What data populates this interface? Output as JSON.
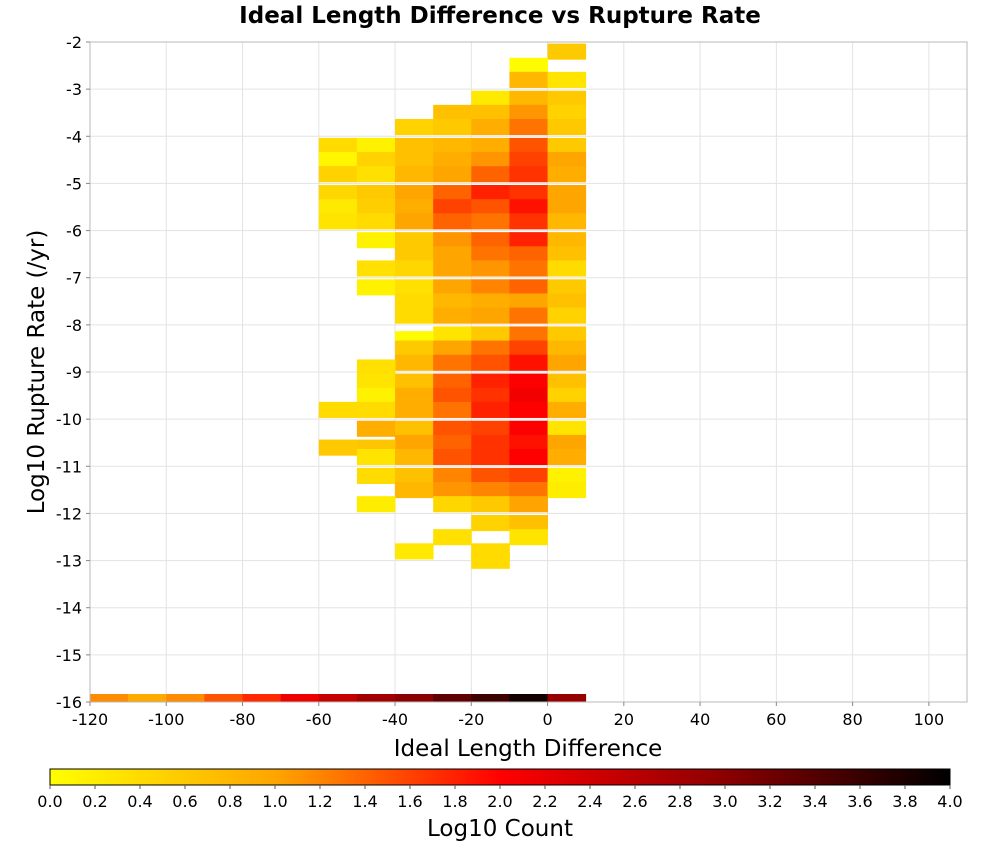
{
  "chart_data": {
    "type": "heatmap",
    "title": "Ideal Length Difference vs Rupture Rate",
    "xlabel": "Ideal Length Difference",
    "ylabel": "Log10 Rupture Rate (/yr)",
    "xlim": [
      -120,
      110
    ],
    "ylim": [
      -16,
      -2
    ],
    "x_ticks": [
      "-120",
      "-100",
      "-80",
      "-60",
      "-40",
      "-20",
      "0",
      "20",
      "40",
      "60",
      "80",
      "100"
    ],
    "y_ticks": [
      "-2",
      "-3",
      "-4",
      "-5",
      "-6",
      "-7",
      "-8",
      "-9",
      "-10",
      "-11",
      "-12",
      "-13",
      "-14",
      "-15",
      "-16"
    ],
    "x_bin_width": 10,
    "y_bin_height": 0.333,
    "grid": true,
    "colorbar": {
      "label": "Log10 Count",
      "min": 0.0,
      "max": 4.0,
      "ticks": [
        "0.0",
        "0.2",
        "0.4",
        "0.6",
        "0.8",
        "1.0",
        "1.2",
        "1.4",
        "1.6",
        "1.8",
        "2.0",
        "2.2",
        "2.4",
        "2.6",
        "2.8",
        "3.0",
        "3.2",
        "3.4",
        "3.6",
        "3.8",
        "4.0"
      ],
      "colors": [
        "#ffff00",
        "#ffa500",
        "#ff0000",
        "#8b0000",
        "#000000"
      ]
    },
    "cells": [
      {
        "x": 0,
        "y": -2.2,
        "v": 0.6
      },
      {
        "x": -10,
        "y": -2.5,
        "v": 0.05
      },
      {
        "x": -10,
        "y": -2.8,
        "v": 0.8
      },
      {
        "x": 0,
        "y": -2.8,
        "v": 0.3
      },
      {
        "x": -20,
        "y": -3.2,
        "v": 0.25
      },
      {
        "x": -10,
        "y": -3.2,
        "v": 0.8
      },
      {
        "x": 0,
        "y": -3.2,
        "v": 0.6
      },
      {
        "x": -30,
        "y": -3.5,
        "v": 0.7
      },
      {
        "x": -20,
        "y": -3.5,
        "v": 0.7
      },
      {
        "x": -10,
        "y": -3.5,
        "v": 1.1
      },
      {
        "x": 0,
        "y": -3.5,
        "v": 0.5
      },
      {
        "x": -40,
        "y": -3.8,
        "v": 0.5
      },
      {
        "x": -30,
        "y": -3.8,
        "v": 0.6
      },
      {
        "x": -20,
        "y": -3.8,
        "v": 0.9
      },
      {
        "x": -10,
        "y": -3.8,
        "v": 1.3
      },
      {
        "x": 0,
        "y": -3.8,
        "v": 0.6
      },
      {
        "x": -60,
        "y": -4.2,
        "v": 0.4
      },
      {
        "x": -50,
        "y": -4.2,
        "v": 0.15
      },
      {
        "x": -40,
        "y": -4.2,
        "v": 0.7
      },
      {
        "x": -30,
        "y": -4.2,
        "v": 0.8
      },
      {
        "x": -20,
        "y": -4.2,
        "v": 0.9
      },
      {
        "x": -10,
        "y": -4.2,
        "v": 1.5
      },
      {
        "x": 0,
        "y": -4.2,
        "v": 0.6
      },
      {
        "x": -60,
        "y": -4.5,
        "v": 0.1
      },
      {
        "x": -50,
        "y": -4.5,
        "v": 0.5
      },
      {
        "x": -40,
        "y": -4.5,
        "v": 0.7
      },
      {
        "x": -30,
        "y": -4.5,
        "v": 0.9
      },
      {
        "x": -20,
        "y": -4.5,
        "v": 1.1
      },
      {
        "x": -10,
        "y": -4.5,
        "v": 1.6
      },
      {
        "x": 0,
        "y": -4.5,
        "v": 1.0
      },
      {
        "x": -60,
        "y": -4.8,
        "v": 0.5
      },
      {
        "x": -50,
        "y": -4.8,
        "v": 0.35
      },
      {
        "x": -40,
        "y": -4.8,
        "v": 0.8
      },
      {
        "x": -30,
        "y": -4.8,
        "v": 1.0
      },
      {
        "x": -20,
        "y": -4.8,
        "v": 1.4
      },
      {
        "x": -10,
        "y": -4.8,
        "v": 1.7
      },
      {
        "x": 0,
        "y": -4.8,
        "v": 0.9
      },
      {
        "x": -60,
        "y": -5.2,
        "v": 0.45
      },
      {
        "x": -50,
        "y": -5.2,
        "v": 0.6
      },
      {
        "x": -40,
        "y": -5.2,
        "v": 1.0
      },
      {
        "x": -30,
        "y": -5.2,
        "v": 1.4
      },
      {
        "x": -20,
        "y": -5.2,
        "v": 1.8
      },
      {
        "x": -10,
        "y": -5.2,
        "v": 1.7
      },
      {
        "x": 0,
        "y": -5.2,
        "v": 1.0
      },
      {
        "x": -60,
        "y": -5.5,
        "v": 0.25
      },
      {
        "x": -50,
        "y": -5.5,
        "v": 0.55
      },
      {
        "x": -40,
        "y": -5.5,
        "v": 0.9
      },
      {
        "x": -30,
        "y": -5.5,
        "v": 1.6
      },
      {
        "x": -20,
        "y": -5.5,
        "v": 1.5
      },
      {
        "x": -10,
        "y": -5.5,
        "v": 1.9
      },
      {
        "x": 0,
        "y": -5.5,
        "v": 1.0
      },
      {
        "x": -60,
        "y": -5.8,
        "v": 0.3
      },
      {
        "x": -50,
        "y": -5.8,
        "v": 0.4
      },
      {
        "x": -40,
        "y": -5.8,
        "v": 1.0
      },
      {
        "x": -30,
        "y": -5.8,
        "v": 1.4
      },
      {
        "x": -20,
        "y": -5.8,
        "v": 1.3
      },
      {
        "x": -10,
        "y": -5.8,
        "v": 1.7
      },
      {
        "x": 0,
        "y": -5.8,
        "v": 0.8
      },
      {
        "x": -50,
        "y": -6.2,
        "v": 0.15
      },
      {
        "x": -40,
        "y": -6.2,
        "v": 0.6
      },
      {
        "x": -30,
        "y": -6.2,
        "v": 1.1
      },
      {
        "x": -20,
        "y": -6.2,
        "v": 1.4
      },
      {
        "x": -10,
        "y": -6.2,
        "v": 1.8
      },
      {
        "x": 0,
        "y": -6.2,
        "v": 0.8
      },
      {
        "x": -40,
        "y": -6.5,
        "v": 0.6
      },
      {
        "x": -30,
        "y": -6.5,
        "v": 1.0
      },
      {
        "x": -20,
        "y": -6.5,
        "v": 1.3
      },
      {
        "x": -10,
        "y": -6.5,
        "v": 1.4
      },
      {
        "x": 0,
        "y": -6.5,
        "v": 0.7
      },
      {
        "x": -50,
        "y": -6.8,
        "v": 0.35
      },
      {
        "x": -40,
        "y": -6.8,
        "v": 0.45
      },
      {
        "x": -30,
        "y": -6.8,
        "v": 1.0
      },
      {
        "x": -20,
        "y": -6.8,
        "v": 1.1
      },
      {
        "x": -10,
        "y": -6.8,
        "v": 1.3
      },
      {
        "x": 0,
        "y": -6.8,
        "v": 0.4
      },
      {
        "x": -50,
        "y": -7.2,
        "v": 0.15
      },
      {
        "x": -40,
        "y": -7.2,
        "v": 0.35
      },
      {
        "x": -30,
        "y": -7.2,
        "v": 1.0
      },
      {
        "x": -20,
        "y": -7.2,
        "v": 1.2
      },
      {
        "x": -10,
        "y": -7.2,
        "v": 1.4
      },
      {
        "x": 0,
        "y": -7.2,
        "v": 0.6
      },
      {
        "x": -40,
        "y": -7.5,
        "v": 0.4
      },
      {
        "x": -30,
        "y": -7.5,
        "v": 0.8
      },
      {
        "x": -20,
        "y": -7.5,
        "v": 0.9
      },
      {
        "x": -10,
        "y": -7.5,
        "v": 1.0
      },
      {
        "x": 0,
        "y": -7.5,
        "v": 0.7
      },
      {
        "x": -40,
        "y": -7.8,
        "v": 0.4
      },
      {
        "x": -30,
        "y": -7.8,
        "v": 0.9
      },
      {
        "x": -20,
        "y": -7.8,
        "v": 1.0
      },
      {
        "x": -10,
        "y": -7.8,
        "v": 1.3
      },
      {
        "x": 0,
        "y": -7.8,
        "v": 0.5
      },
      {
        "x": -30,
        "y": -8.2,
        "v": 0.3
      },
      {
        "x": -20,
        "y": -8.2,
        "v": 0.6
      },
      {
        "x": -10,
        "y": -8.2,
        "v": 1.3
      },
      {
        "x": 0,
        "y": -8.2,
        "v": 0.6
      },
      {
        "x": -40,
        "y": -8.3,
        "v": 0.05
      },
      {
        "x": -40,
        "y": -8.5,
        "v": 0.6
      },
      {
        "x": -30,
        "y": -8.5,
        "v": 1.0
      },
      {
        "x": -20,
        "y": -8.5,
        "v": 1.3
      },
      {
        "x": -10,
        "y": -8.5,
        "v": 1.6
      },
      {
        "x": 0,
        "y": -8.5,
        "v": 0.8
      },
      {
        "x": -40,
        "y": -8.8,
        "v": 0.8
      },
      {
        "x": -30,
        "y": -8.8,
        "v": 1.3
      },
      {
        "x": -20,
        "y": -8.8,
        "v": 1.5
      },
      {
        "x": -10,
        "y": -8.8,
        "v": 1.9
      },
      {
        "x": 0,
        "y": -8.8,
        "v": 1.0
      },
      {
        "x": -50,
        "y": -8.9,
        "v": 0.35
      },
      {
        "x": -50,
        "y": -9.2,
        "v": 0.3
      },
      {
        "x": -40,
        "y": -9.2,
        "v": 0.7
      },
      {
        "x": -30,
        "y": -9.2,
        "v": 1.4
      },
      {
        "x": -20,
        "y": -9.2,
        "v": 1.8
      },
      {
        "x": -10,
        "y": -9.2,
        "v": 2.0
      },
      {
        "x": 0,
        "y": -9.2,
        "v": 0.7
      },
      {
        "x": -50,
        "y": -9.5,
        "v": 0.15
      },
      {
        "x": -40,
        "y": -9.5,
        "v": 0.9
      },
      {
        "x": -30,
        "y": -9.5,
        "v": 1.5
      },
      {
        "x": -20,
        "y": -9.5,
        "v": 1.7
      },
      {
        "x": -10,
        "y": -9.5,
        "v": 2.1
      },
      {
        "x": 0,
        "y": -9.5,
        "v": 0.5
      },
      {
        "x": -60,
        "y": -9.8,
        "v": 0.4
      },
      {
        "x": -50,
        "y": -9.8,
        "v": 0.4
      },
      {
        "x": -40,
        "y": -9.8,
        "v": 0.9
      },
      {
        "x": -30,
        "y": -9.8,
        "v": 1.3
      },
      {
        "x": -20,
        "y": -9.8,
        "v": 1.8
      },
      {
        "x": -10,
        "y": -9.8,
        "v": 2.0
      },
      {
        "x": 0,
        "y": -9.8,
        "v": 0.9
      },
      {
        "x": -50,
        "y": -10.2,
        "v": 0.9
      },
      {
        "x": -40,
        "y": -10.2,
        "v": 0.7
      },
      {
        "x": -30,
        "y": -10.2,
        "v": 1.5
      },
      {
        "x": -20,
        "y": -10.2,
        "v": 1.6
      },
      {
        "x": -10,
        "y": -10.2,
        "v": 2.0
      },
      {
        "x": 0,
        "y": -10.2,
        "v": 0.3
      },
      {
        "x": -40,
        "y": -10.5,
        "v": 1.0
      },
      {
        "x": -30,
        "y": -10.5,
        "v": 1.4
      },
      {
        "x": -20,
        "y": -10.5,
        "v": 1.7
      },
      {
        "x": -10,
        "y": -10.5,
        "v": 1.9
      },
      {
        "x": 0,
        "y": -10.5,
        "v": 1.0
      },
      {
        "x": -60,
        "y": -10.6,
        "v": 0.6
      },
      {
        "x": -50,
        "y": -10.6,
        "v": 0.65
      },
      {
        "x": -50,
        "y": -10.8,
        "v": 0.3
      },
      {
        "x": -40,
        "y": -10.8,
        "v": 0.8
      },
      {
        "x": -30,
        "y": -10.8,
        "v": 1.5
      },
      {
        "x": -20,
        "y": -10.8,
        "v": 1.7
      },
      {
        "x": -10,
        "y": -10.8,
        "v": 2.0
      },
      {
        "x": 0,
        "y": -10.8,
        "v": 0.9
      },
      {
        "x": -50,
        "y": -11.2,
        "v": 0.4
      },
      {
        "x": -40,
        "y": -11.2,
        "v": 0.7
      },
      {
        "x": -30,
        "y": -11.2,
        "v": 1.2
      },
      {
        "x": -20,
        "y": -11.2,
        "v": 1.5
      },
      {
        "x": -10,
        "y": -11.2,
        "v": 1.6
      },
      {
        "x": 0,
        "y": -11.2,
        "v": 0.15
      },
      {
        "x": -40,
        "y": -11.5,
        "v": 0.8
      },
      {
        "x": -30,
        "y": -11.5,
        "v": 1.1
      },
      {
        "x": -20,
        "y": -11.5,
        "v": 1.2
      },
      {
        "x": -10,
        "y": -11.5,
        "v": 1.3
      },
      {
        "x": 0,
        "y": -11.5,
        "v": 0.2
      },
      {
        "x": -50,
        "y": -11.8,
        "v": 0.2
      },
      {
        "x": -30,
        "y": -11.8,
        "v": 0.45
      },
      {
        "x": -20,
        "y": -11.8,
        "v": 0.6
      },
      {
        "x": -10,
        "y": -11.8,
        "v": 1.0
      },
      {
        "x": -20,
        "y": -12.2,
        "v": 0.5
      },
      {
        "x": -10,
        "y": -12.2,
        "v": 0.7
      },
      {
        "x": -30,
        "y": -12.5,
        "v": 0.35
      },
      {
        "x": -10,
        "y": -12.5,
        "v": 0.3
      },
      {
        "x": -40,
        "y": -12.8,
        "v": 0.25
      },
      {
        "x": -20,
        "y": -12.8,
        "v": 0.4
      },
      {
        "x": -20,
        "y": -13.0,
        "v": 0.4
      },
      {
        "x": -120,
        "y": -16.0,
        "v": 1.15
      },
      {
        "x": -110,
        "y": -16.0,
        "v": 0.95
      },
      {
        "x": -100,
        "y": -16.0,
        "v": 1.15
      },
      {
        "x": -90,
        "y": -16.0,
        "v": 1.5
      },
      {
        "x": -80,
        "y": -16.0,
        "v": 1.75
      },
      {
        "x": -70,
        "y": -16.0,
        "v": 2.15
      },
      {
        "x": -60,
        "y": -16.0,
        "v": 2.5
      },
      {
        "x": -50,
        "y": -16.0,
        "v": 2.8
      },
      {
        "x": -40,
        "y": -16.0,
        "v": 3.0
      },
      {
        "x": -30,
        "y": -16.0,
        "v": 3.3
      },
      {
        "x": -20,
        "y": -16.0,
        "v": 3.55
      },
      {
        "x": -10,
        "y": -16.0,
        "v": 3.85
      },
      {
        "x": 0,
        "y": -16.0,
        "v": 2.9
      }
    ]
  }
}
